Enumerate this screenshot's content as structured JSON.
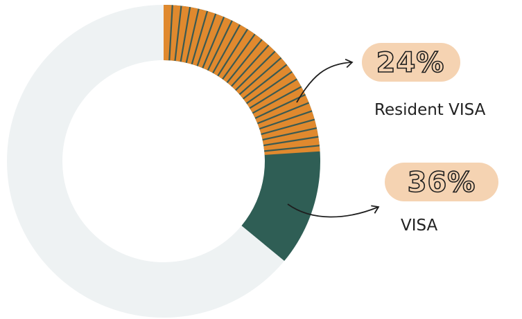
{
  "chart_data": {
    "type": "donut",
    "categories": [
      "Resident VISA",
      "VISA"
    ],
    "values": [
      24,
      36
    ],
    "value_labels": [
      "24%",
      "36%"
    ],
    "colors": [
      "#e0892e",
      "#2f5e55"
    ],
    "stripe_color": "#3a5a52",
    "track_color": "#eef2f3",
    "label_bg": "#f5d3b2"
  }
}
